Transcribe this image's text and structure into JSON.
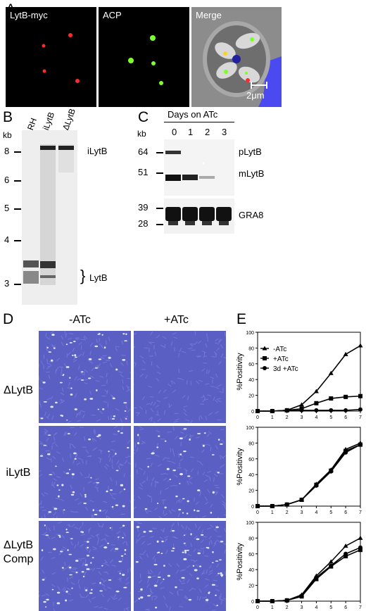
{
  "panel_letters": {
    "A": "A",
    "B": "B",
    "C": "C",
    "D": "D",
    "E": "E"
  },
  "panelA": {
    "labels": [
      "LytB-myc",
      "ACP",
      "Merge"
    ],
    "scale_bar": "2μm"
  },
  "panelB": {
    "kb": "kb",
    "lanes": [
      "RH",
      "iLytB",
      "ΔLytB"
    ],
    "ladder": [
      "8",
      "6",
      "5",
      "4",
      "3"
    ],
    "band_labels": {
      "top": "iLytB",
      "bottom": "LytB"
    }
  },
  "panelC": {
    "title": "Days on ATc",
    "kb": "kb",
    "days": [
      "0",
      "1",
      "2",
      "3"
    ],
    "markers_top": [
      "64",
      "51"
    ],
    "markers_bottom": [
      "39",
      "28"
    ],
    "band_labels": [
      "pLytB",
      "mLytB",
      "GRA8"
    ]
  },
  "panelD": {
    "columns": [
      "-ATc",
      "+ATc"
    ],
    "rows": [
      "ΔLytB",
      "iLytB",
      "ΔLytB Comp"
    ]
  },
  "colors": {
    "stain": "#5a5fc4",
    "plaque": "#e6e8f8",
    "merge_bg": "#4a4af0",
    "red": "#ff2a2a",
    "green": "#7dff2a"
  },
  "chart_data": [
    {
      "type": "line",
      "x": [
        0,
        1,
        2,
        3,
        4,
        5,
        6,
        7
      ],
      "ylabel": "%Positivity",
      "ylim": [
        0,
        100
      ],
      "yticks": [
        "0",
        "20",
        "40",
        "60",
        "80",
        "100"
      ],
      "xticks": [
        "0",
        "1",
        "2",
        "3",
        "4",
        "5",
        "6",
        "7"
      ],
      "legend": "top-left",
      "series": [
        {
          "name": "-ATc",
          "marker": "triangle",
          "values": [
            0,
            0,
            1,
            8,
            25,
            48,
            72,
            83
          ]
        },
        {
          "name": "+ATc",
          "marker": "square",
          "values": [
            0,
            0,
            1,
            3,
            10,
            16,
            18,
            19
          ]
        },
        {
          "name": "3d +ATc",
          "marker": "circle",
          "values": [
            0,
            0,
            1,
            1,
            1,
            1,
            1,
            2
          ]
        }
      ]
    },
    {
      "type": "line",
      "x": [
        0,
        1,
        2,
        3,
        4,
        5,
        6,
        7
      ],
      "ylabel": "%Positivity",
      "ylim": [
        0,
        100
      ],
      "yticks": [
        "0",
        "20",
        "40",
        "60",
        "80",
        "100"
      ],
      "xticks": [
        "0",
        "1",
        "2",
        "3",
        "4",
        "5",
        "6",
        "7"
      ],
      "series": [
        {
          "marker": "triangle",
          "values": [
            0,
            0,
            2,
            8,
            28,
            46,
            72,
            80
          ]
        },
        {
          "marker": "square",
          "values": [
            0,
            0,
            2,
            8,
            27,
            45,
            70,
            78
          ]
        },
        {
          "marker": "circle",
          "values": [
            0,
            0,
            2,
            8,
            26,
            44,
            68,
            78
          ]
        }
      ]
    },
    {
      "type": "line",
      "x": [
        0,
        1,
        2,
        3,
        4,
        5,
        6,
        7
      ],
      "ylabel": "%Positivity",
      "ylim": [
        0,
        100
      ],
      "yticks": [
        "0",
        "20",
        "40",
        "60",
        "80",
        "100"
      ],
      "xticks": [
        "0",
        "1",
        "2",
        "3",
        "4",
        "5",
        "6",
        "7"
      ],
      "series": [
        {
          "marker": "triangle",
          "values": [
            0,
            0,
            1,
            8,
            32,
            50,
            70,
            80
          ]
        },
        {
          "marker": "square",
          "values": [
            0,
            0,
            1,
            6,
            28,
            44,
            57,
            65
          ]
        },
        {
          "marker": "circle",
          "values": [
            0,
            0,
            1,
            6,
            30,
            45,
            60,
            68
          ]
        }
      ]
    }
  ]
}
